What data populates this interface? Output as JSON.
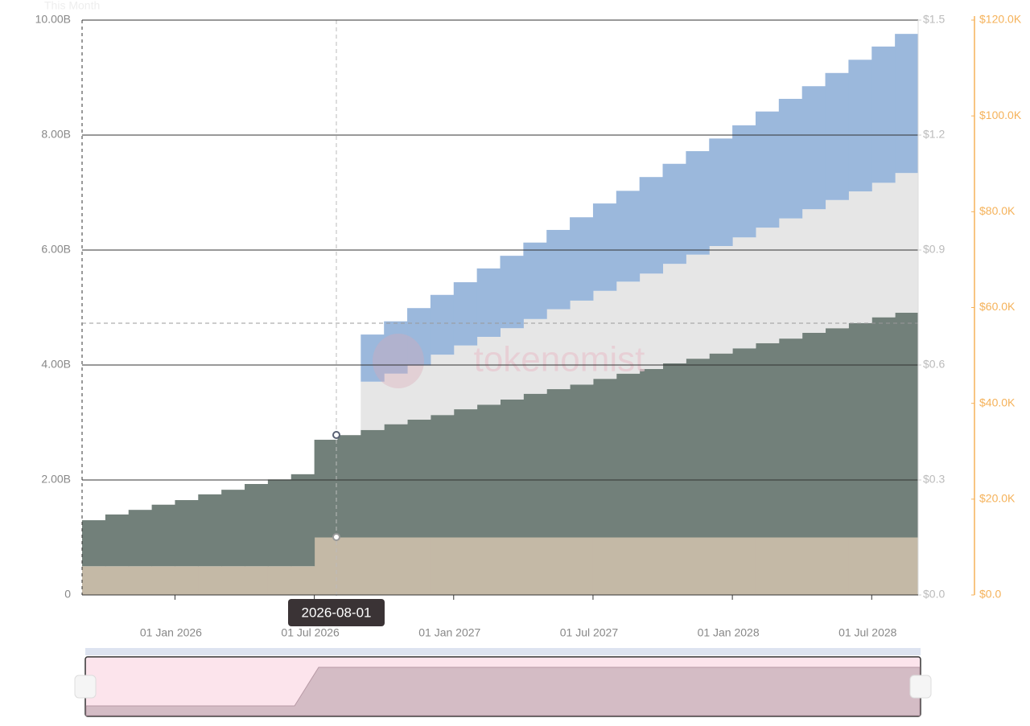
{
  "chart_data": {
    "type": "stacked-step-area",
    "annotation": "This Month",
    "watermark": "tokenomist",
    "tooltip": "2026-08-01",
    "x": [
      "2025-09-01",
      "2025-10-01",
      "2025-11-01",
      "2025-12-01",
      "2026-01-01",
      "2026-02-01",
      "2026-03-01",
      "2026-04-01",
      "2026-05-01",
      "2026-06-01",
      "2026-07-01",
      "2026-08-01",
      "2026-09-01",
      "2026-10-01",
      "2026-11-01",
      "2026-12-01",
      "2027-01-01",
      "2027-02-01",
      "2027-03-01",
      "2027-04-01",
      "2027-05-01",
      "2027-06-01",
      "2027-07-01",
      "2027-08-01",
      "2027-09-01",
      "2027-10-01",
      "2027-11-01",
      "2027-12-01",
      "2028-01-01",
      "2028-02-01",
      "2028-03-01",
      "2028-04-01",
      "2028-05-01",
      "2028-06-01",
      "2028-07-01",
      "2028-08-01"
    ],
    "xticks": [
      {
        "value": "2026-01-01",
        "label": "01 Jan 2026"
      },
      {
        "value": "2026-07-01",
        "label": "01 Jul 2026"
      },
      {
        "value": "2027-01-01",
        "label": "01 Jan 2027"
      },
      {
        "value": "2027-07-01",
        "label": "01 Jul 2027"
      },
      {
        "value": "2028-01-01",
        "label": "01 Jan 2028"
      },
      {
        "value": "2028-07-01",
        "label": "01 Jul 2028"
      }
    ],
    "series": [
      {
        "color": "#c4b9a6",
        "values": [
          500000000.0,
          500000000.0,
          500000000.0,
          500000000.0,
          500000000.0,
          500000000.0,
          500000000.0,
          500000000.0,
          500000000.0,
          500000000.0,
          1000000000.0,
          1000000000.0,
          1000000000.0,
          1000000000.0,
          1000000000.0,
          1000000000.0,
          1000000000.0,
          1000000000.0,
          1000000000.0,
          1000000000.0,
          1000000000.0,
          1000000000.0,
          1000000000.0,
          1000000000.0,
          1000000000.0,
          1000000000.0,
          1000000000.0,
          1000000000.0,
          1000000000.0,
          1000000000.0,
          1000000000.0,
          1000000000.0,
          1000000000.0,
          1000000000.0,
          1000000000.0,
          1000000000.0
        ]
      },
      {
        "color": "#72807a",
        "values": [
          800000000.0,
          900000000.0,
          980000000.0,
          1070000000.0,
          1150000000.0,
          1250000000.0,
          1330000000.0,
          1430000000.0,
          1510000000.0,
          1600000000.0,
          1700000000.0,
          1780000000.0,
          1870000000.0,
          1970000000.0,
          2050000000.0,
          2130000000.0,
          2230000000.0,
          2310000000.0,
          2400000000.0,
          2500000000.0,
          2580000000.0,
          2660000000.0,
          2760000000.0,
          2850000000.0,
          2930000000.0,
          3030000000.0,
          3110000000.0,
          3200000000.0,
          3290000000.0,
          3380000000.0,
          3460000000.0,
          3560000000.0,
          3640000000.0,
          3730000000.0,
          3830000000.0,
          3910000000.0
        ]
      },
      {
        "color": "#e6e6e6",
        "values": [
          null,
          null,
          null,
          null,
          null,
          null,
          null,
          null,
          null,
          null,
          null,
          null,
          840000000.0,
          880000000.0,
          940000000.0,
          1050000000.0,
          1110000000.0,
          1180000000.0,
          1240000000.0,
          1300000000.0,
          1390000000.0,
          1460000000.0,
          1530000000.0,
          1600000000.0,
          1660000000.0,
          1730000000.0,
          1810000000.0,
          1870000000.0,
          1930000000.0,
          2010000000.0,
          2090000000.0,
          2150000000.0,
          2230000000.0,
          2290000000.0,
          2340000000.0,
          2430000000.0
        ]
      },
      {
        "color": "#9bb8dc",
        "values": [
          null,
          null,
          null,
          null,
          null,
          null,
          null,
          null,
          null,
          null,
          null,
          null,
          820000000.0,
          910000000.0,
          1000000000.0,
          1040000000.0,
          1100000000.0,
          1190000000.0,
          1260000000.0,
          1330000000.0,
          1380000000.0,
          1450000000.0,
          1520000000.0,
          1580000000.0,
          1680000000.0,
          1740000000.0,
          1800000000.0,
          1870000000.0,
          1950000000.0,
          2020000000.0,
          2080000000.0,
          2140000000.0,
          2210000000.0,
          2290000000.0,
          2370000000.0,
          2420000000.0
        ]
      }
    ],
    "ylim": [
      0,
      10000000000
    ],
    "yticks": [
      0,
      {
        "value": 2000000000,
        "label": "2.00B"
      },
      {
        "value": 4000000000,
        "label": "4.00B"
      },
      {
        "value": 6000000000,
        "label": "6.00B"
      },
      {
        "value": 8000000000,
        "label": "8.00B"
      },
      {
        "value": 10000000000,
        "label": "10.00B"
      }
    ],
    "y2lim": [
      0,
      1.5
    ],
    "y2ticks": [
      {
        "value": 0,
        "label": "$0.0"
      },
      {
        "value": 0.3,
        "label": "$0.3"
      },
      {
        "value": 0.6,
        "label": "$0.6"
      },
      {
        "value": 0.9,
        "label": "$0.9"
      },
      {
        "value": 1.2,
        "label": "$1.2"
      },
      {
        "value": 1.5,
        "label": "$1.5"
      }
    ],
    "y3lim": [
      0,
      120000
    ],
    "y3ticks": [
      {
        "value": 0,
        "label": "$0.0"
      },
      {
        "value": 20000,
        "label": "$20.0K"
      },
      {
        "value": 40000,
        "label": "$40.0K"
      },
      {
        "value": 60000,
        "label": "$60.0K"
      },
      {
        "value": 80000,
        "label": "$80.0K"
      },
      {
        "value": 100000,
        "label": "$100.0K"
      },
      {
        "value": 120000,
        "label": "$120.0K"
      }
    ],
    "y3color": "#f5b25a",
    "grid": true
  }
}
